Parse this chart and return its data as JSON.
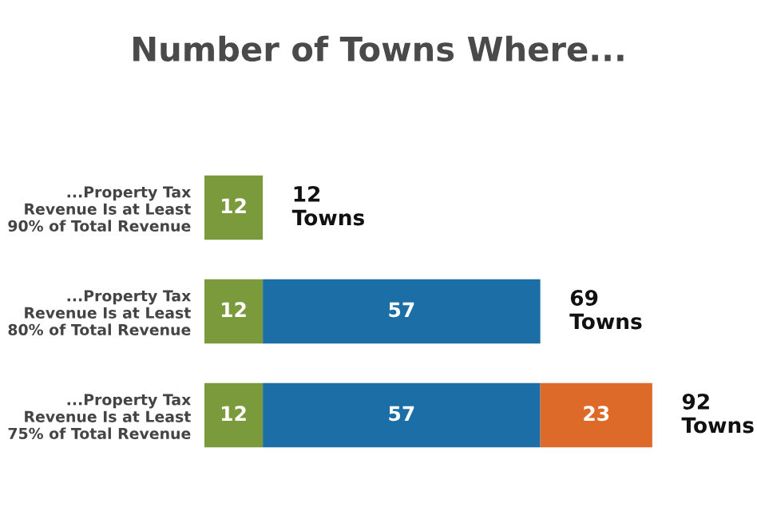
{
  "chart_data": {
    "type": "bar",
    "orientation": "horizontal",
    "stacked": true,
    "title": "Number of Towns Where...",
    "categories": [
      "...Property Tax\nRevenue Is at Least\n90% of Total Revenue",
      "...Property Tax\nRevenue Is at Least\n80% of Total Revenue",
      "...Property Tax\nRevenue Is at Least\n75% of Total Revenue"
    ],
    "series": [
      {
        "color": "#7b9a3c",
        "values": [
          12,
          12,
          12
        ]
      },
      {
        "color": "#1b6fa6",
        "values": [
          null,
          57,
          57
        ]
      },
      {
        "color": "#dd6a28",
        "values": [
          null,
          null,
          23
        ]
      }
    ],
    "tick_labels": "y",
    "data_labels": true,
    "totals": [
      "12\nTowns",
      "69\nTowns",
      "92\nTowns"
    ],
    "grid": false,
    "legend": false
  }
}
